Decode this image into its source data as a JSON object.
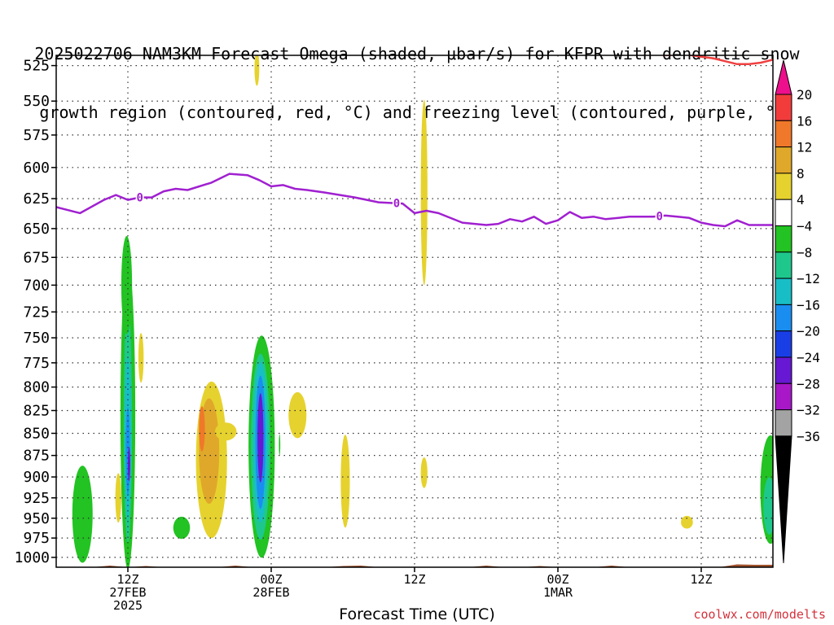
{
  "title_lines": [
    "2025022706 NAM3KM Forecast Omega (shaded, μbar/s) for KFPR with dendritic snow",
    "growth region (contoured, red, °C) and freezing level (contoured, purple, °C)"
  ],
  "credit": "coolwx.com/modelts",
  "chart_data": {
    "type": "heatmap",
    "title": "2025022706 NAM3KM Forecast Omega (shaded, μbar/s) for KFPR with dendritic snow growth region (contoured, red, °C) and freezing level (contoured, purple, °C)",
    "xlabel": "Forecast Time (UTC)",
    "ylabel": "",
    "x_units": "forecast hours from 2025-02-27 06Z",
    "xlim": [
      0,
      60
    ],
    "ylim": [
      1013,
      518
    ],
    "y_scale": "log",
    "grid": true,
    "y_ticks": [
      525,
      550,
      575,
      600,
      625,
      650,
      675,
      700,
      725,
      750,
      775,
      800,
      825,
      850,
      875,
      900,
      925,
      950,
      975,
      1000
    ],
    "x_ticks": [
      {
        "x": 6,
        "lines": [
          "12Z",
          "27FEB",
          "2025"
        ]
      },
      {
        "x": 18,
        "lines": [
          "00Z",
          "28FEB"
        ]
      },
      {
        "x": 30,
        "lines": [
          "12Z"
        ]
      },
      {
        "x": 42,
        "lines": [
          "00Z",
          "1MAR"
        ]
      },
      {
        "x": 54,
        "lines": [
          "12Z"
        ]
      }
    ],
    "colorbar": {
      "labels": [
        20,
        16,
        12,
        8,
        4,
        -4,
        -8,
        -12,
        -16,
        -20,
        -24,
        -28,
        -32,
        -36
      ],
      "colors": [
        "#ee0f8c",
        "#f23c3c",
        "#f0782a",
        "#e0a82a",
        "#e6d22e",
        "#ffffff",
        "#22c322",
        "#1ec88c",
        "#18bec6",
        "#1a8ef0",
        "#1a3ee6",
        "#6618d2",
        "#a818c8",
        "#a3a3a3",
        "#000000"
      ]
    },
    "freezing_level": {
      "label": "0",
      "color": "#a020d0",
      "label_at_x": [
        7,
        28.5,
        50.5
      ],
      "x": [
        0,
        2,
        4,
        5,
        6,
        7,
        8,
        9,
        10,
        11,
        13,
        14.5,
        16,
        17,
        18,
        19,
        20,
        21,
        22.5,
        25,
        27,
        29,
        30,
        31,
        32,
        34,
        36,
        37,
        38,
        39,
        40,
        41,
        42,
        43,
        44,
        45,
        46,
        48,
        50,
        51,
        52,
        53,
        54,
        55,
        56,
        57,
        58,
        59,
        60
      ],
      "y": [
        632,
        637,
        626,
        622,
        626,
        624,
        624,
        619,
        617,
        618,
        612,
        605,
        606,
        610,
        615,
        614,
        617,
        618,
        620,
        624,
        628,
        629,
        637,
        635,
        637,
        645,
        647,
        646,
        642,
        644,
        640,
        646,
        643,
        636,
        641,
        640,
        642,
        640,
        640,
        639,
        640,
        641,
        645,
        647,
        648,
        643,
        647,
        647,
        647
      ]
    },
    "dgz_contour": {
      "color": "#f04040",
      "x": [
        51,
        52.5,
        54,
        55,
        56,
        57,
        58,
        59,
        60
      ],
      "y": [
        518,
        517,
        519,
        520,
        522,
        524,
        524,
        523,
        521
      ]
    },
    "terrain": {
      "color": "#a0522d",
      "pressure": 1013
    },
    "omega_regions": [
      {
        "value": -6,
        "x": 2.2,
        "p": 945,
        "w": 0.85,
        "h": 60
      },
      {
        "value": -6,
        "x": 6.0,
        "p": 830,
        "w": 0.62,
        "h": 165
      },
      {
        "value": -10,
        "x": 6.0,
        "p": 840,
        "w": 0.35,
        "h": 130
      },
      {
        "value": -14,
        "x": 6.0,
        "p": 855,
        "w": 0.28,
        "h": 90
      },
      {
        "value": -18,
        "x": 6.0,
        "p": 870,
        "w": 0.18,
        "h": 50
      },
      {
        "value": -26,
        "x": 6.1,
        "p": 885,
        "w": 0.1,
        "h": 20
      },
      {
        "value": -6,
        "x": 5.9,
        "p": 700,
        "w": 0.45,
        "h": 45
      },
      {
        "value": 5,
        "x": 7.1,
        "p": 770,
        "w": 0.22,
        "h": 25
      },
      {
        "value": 5,
        "x": 5.2,
        "p": 925,
        "w": 0.25,
        "h": 30
      },
      {
        "value": -6,
        "x": 10.5,
        "p": 962,
        "w": 0.7,
        "h": 14
      },
      {
        "value": 5,
        "x": 13.0,
        "p": 880,
        "w": 1.3,
        "h": 90
      },
      {
        "value": 9,
        "x": 12.8,
        "p": 870,
        "w": 0.85,
        "h": 60
      },
      {
        "value": 13,
        "x": 12.2,
        "p": 845,
        "w": 0.25,
        "h": 25
      },
      {
        "value": 5,
        "x": 14.2,
        "p": 848,
        "w": 0.9,
        "h": 10
      },
      {
        "value": -6,
        "x": 17.2,
        "p": 865,
        "w": 1.1,
        "h": 125
      },
      {
        "value": -10,
        "x": 17.1,
        "p": 865,
        "w": 0.8,
        "h": 105
      },
      {
        "value": -14,
        "x": 17.1,
        "p": 860,
        "w": 0.6,
        "h": 90
      },
      {
        "value": -18,
        "x": 17.1,
        "p": 860,
        "w": 0.42,
        "h": 75
      },
      {
        "value": -26,
        "x": 17.1,
        "p": 855,
        "w": 0.25,
        "h": 50
      },
      {
        "value": 5,
        "x": 16.8,
        "p": 527,
        "w": 0.2,
        "h": 12
      },
      {
        "value": -6,
        "x": 18.7,
        "p": 863,
        "w": 0.06,
        "h": 12
      },
      {
        "value": 5,
        "x": 20.2,
        "p": 830,
        "w": 0.75,
        "h": 25
      },
      {
        "value": 5,
        "x": 24.2,
        "p": 905,
        "w": 0.38,
        "h": 55
      },
      {
        "value": 5,
        "x": 30.8,
        "p": 620,
        "w": 0.28,
        "h": 75
      },
      {
        "value": 5,
        "x": 30.8,
        "p": 895,
        "w": 0.28,
        "h": 18
      },
      {
        "value": 5,
        "x": 52.8,
        "p": 955,
        "w": 0.5,
        "h": 8
      },
      {
        "value": -6,
        "x": 59.8,
        "p": 915,
        "w": 0.85,
        "h": 65
      },
      {
        "value": -10,
        "x": 59.7,
        "p": 935,
        "w": 0.5,
        "h": 35
      }
    ]
  }
}
